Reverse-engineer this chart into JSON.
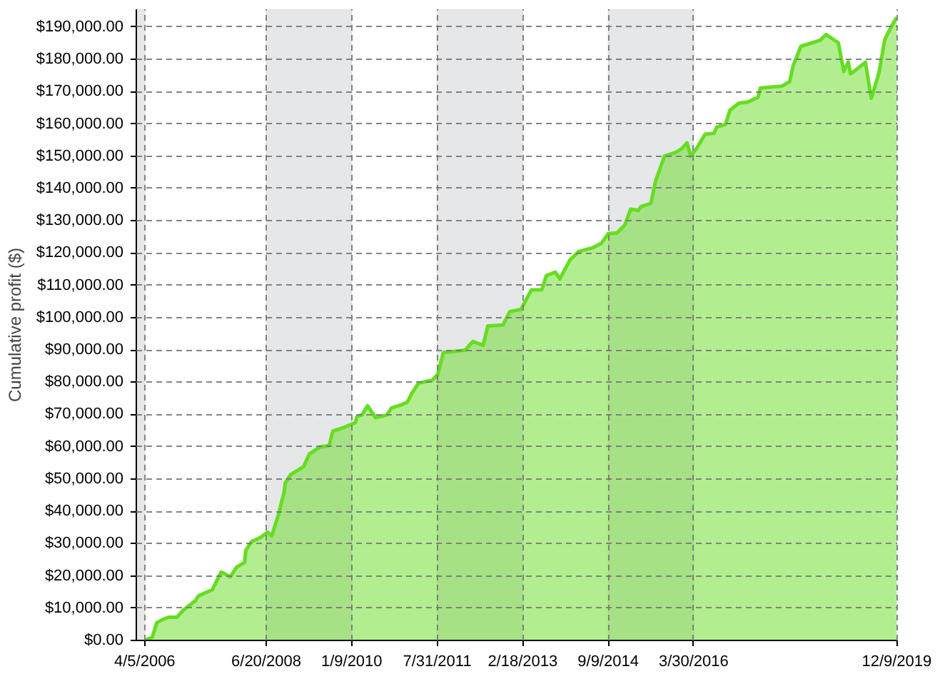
{
  "chart_data": {
    "type": "area",
    "ylabel": "Cumulative profit ($)",
    "x": [
      "2006-04-05",
      "2006-05-25",
      "2006-06-24",
      "2006-08-08",
      "2006-09-12",
      "2006-11-05",
      "2006-12-20",
      "2007-03-05",
      "2007-03-28",
      "2007-06-27",
      "2007-08-26",
      "2007-10-26",
      "2007-12-06",
      "2008-01-29",
      "2008-02-05",
      "2008-03-14",
      "2008-05-14",
      "2008-06-28",
      "2008-07-27",
      "2008-09-10",
      "2008-10-16",
      "2008-10-25",
      "2008-11-30",
      "2009-02-23",
      "2009-04-03",
      "2009-06-16",
      "2009-08-12",
      "2009-09-05",
      "2009-11-20",
      "2010-02-03",
      "2010-02-12",
      "2010-03-19",
      "2010-04-24",
      "2010-06-17",
      "2010-08-30",
      "2010-09-30",
      "2010-12-07",
      "2011-01-13",
      "2011-02-12",
      "2011-03-29",
      "2011-06-27",
      "2011-08-04",
      "2011-09-10",
      "2012-02-01",
      "2012-03-24",
      "2012-05-31",
      "2012-07-01",
      "2012-10-10",
      "2012-11-24",
      "2013-02-07",
      "2013-04-17",
      "2013-06-25",
      "2013-07-25",
      "2013-09-23",
      "2013-10-23",
      "2013-12-28",
      "2014-02-26",
      "2014-05-27",
      "2014-07-26",
      "2014-09-09",
      "2014-11-07",
      "2014-12-29",
      "2015-02-05",
      "2015-03-28",
      "2015-04-15",
      "2015-06-20",
      "2015-07-20",
      "2015-09-18",
      "2015-12-02",
      "2016-01-10",
      "2016-02-15",
      "2016-03-10",
      "2016-04-21",
      "2016-06-14",
      "2016-08-13",
      "2016-08-29",
      "2016-10-27",
      "2016-11-27",
      "2017-01-25",
      "2017-03-27",
      "2017-06-01",
      "2017-06-16",
      "2017-11-06",
      "2017-12-28",
      "2018-01-20",
      "2018-03-12",
      "2018-07-18",
      "2018-08-27",
      "2018-11-16",
      "2018-12-22",
      "2019-01-21",
      "2019-02-05",
      "2019-03-07",
      "2019-05-15",
      "2019-06-23",
      "2019-08-13",
      "2019-09-21",
      "2019-11-10",
      "2019-12-09"
    ],
    "series": [
      {
        "color": "#66dd22",
        "values": [
          0,
          1000,
          5500,
          6600,
          7200,
          7200,
          9500,
          12200,
          13800,
          15700,
          21200,
          19700,
          22700,
          24200,
          27900,
          30600,
          31900,
          33500,
          32400,
          39100,
          45800,
          48800,
          51400,
          53800,
          57800,
          60000,
          60300,
          64800,
          66000,
          67500,
          69300,
          69900,
          72700,
          69000,
          69800,
          72000,
          73000,
          73800,
          76500,
          79700,
          80600,
          82400,
          89200,
          89900,
          92600,
          91400,
          97400,
          97700,
          101800,
          102600,
          108600,
          108600,
          113000,
          114100,
          112000,
          117800,
          120500,
          121600,
          123000,
          126000,
          126200,
          128700,
          133600,
          133200,
          134400,
          135400,
          142200,
          150000,
          151200,
          152300,
          154100,
          150000,
          152600,
          156800,
          157100,
          159000,
          159800,
          164300,
          166400,
          166800,
          168300,
          171100,
          171700,
          173100,
          178000,
          184000,
          185900,
          187700,
          185100,
          176200,
          179200,
          175500,
          176500,
          179100,
          167900,
          175800,
          186200,
          190700,
          193000
        ]
      }
    ],
    "xlim": [
      "2006-02-08",
      "2019-12-12"
    ],
    "xticks": [
      {
        "value": "2006-04-05",
        "label": "4/5/2006"
      },
      {
        "value": "2008-06-20",
        "label": "6/20/2008"
      },
      {
        "value": "2010-01-09",
        "label": "1/9/2010"
      },
      {
        "value": "2011-07-31",
        "label": "7/31/2011"
      },
      {
        "value": "2013-02-18",
        "label": "2/18/2013"
      },
      {
        "value": "2014-09-09",
        "label": "9/9/2014"
      },
      {
        "value": "2016-03-30",
        "label": "3/30/2016"
      },
      {
        "value": "2019-12-09",
        "label": "12/9/2019"
      }
    ],
    "ylim": [
      0,
      195500
    ],
    "yticks": [
      {
        "value": 0,
        "label": "$0.00"
      },
      {
        "value": 10000,
        "label": "$10,000.00"
      },
      {
        "value": 20000,
        "label": "$20,000.00"
      },
      {
        "value": 30000,
        "label": "$30,000.00"
      },
      {
        "value": 40000,
        "label": "$40,000.00"
      },
      {
        "value": 50000,
        "label": "$50,000.00"
      },
      {
        "value": 60000,
        "label": "$60,000.00"
      },
      {
        "value": 70000,
        "label": "$70,000.00"
      },
      {
        "value": 80000,
        "label": "$80,000.00"
      },
      {
        "value": 90000,
        "label": "$90,000.00"
      },
      {
        "value": 100000,
        "label": "$100,000.00"
      },
      {
        "value": 110000,
        "label": "$110,000.00"
      },
      {
        "value": 120000,
        "label": "$120,000.00"
      },
      {
        "value": 130000,
        "label": "$130,000.00"
      },
      {
        "value": 140000,
        "label": "$140,000.00"
      },
      {
        "value": 150000,
        "label": "$150,000.00"
      },
      {
        "value": 160000,
        "label": "$160,000.00"
      },
      {
        "value": 170000,
        "label": "$170,000.00"
      },
      {
        "value": 180000,
        "label": "$180,000.00"
      },
      {
        "value": 190000,
        "label": "$190,000.00"
      }
    ],
    "bands": [
      {
        "axis": "x",
        "from": "2006-02-08",
        "to": "2006-04-05",
        "color": "#e6e7e9"
      },
      {
        "axis": "x",
        "from": "2008-06-20",
        "to": "2010-01-09",
        "color": "#e6e7e9"
      },
      {
        "axis": "x",
        "from": "2011-07-31",
        "to": "2013-02-18",
        "color": "#e6e7e9"
      },
      {
        "axis": "x",
        "from": "2014-09-09",
        "to": "2016-03-30",
        "color": "#e6e7e9"
      }
    ],
    "grid": true
  }
}
